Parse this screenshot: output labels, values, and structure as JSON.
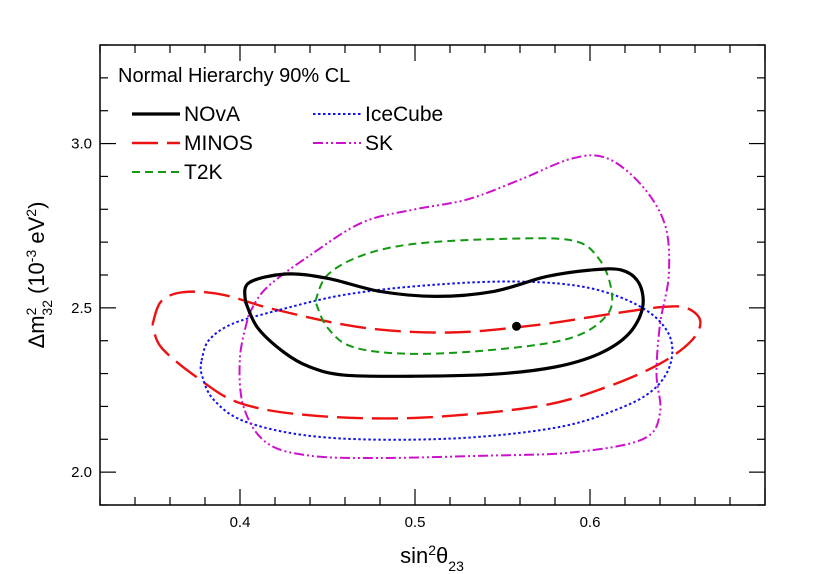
{
  "chart_data": {
    "type": "line",
    "legend_header": "Normal Hierarchy 90% CL",
    "xlabel": {
      "base": "sin",
      "sup": "2",
      "symbol": "θ",
      "sub": "23"
    },
    "ylabel": {
      "prefix": "Δm",
      "sup": "2",
      "sub": "32",
      "units": "(10",
      "units_sup": "-3",
      "units_tail": " eV",
      "units_sup2": "2",
      "units_close": ")"
    },
    "xlim": [
      0.32,
      0.7
    ],
    "ylim": [
      1.9,
      3.3
    ],
    "xticks": [
      0.4,
      0.5,
      0.6
    ],
    "xtick_labels": [
      "0.4",
      "0.5",
      "0.6"
    ],
    "yticks": [
      2.0,
      2.5,
      3.0
    ],
    "ytick_labels": [
      "2.0",
      "2.5",
      "3.0"
    ],
    "grid": false,
    "legend_position": "top-left",
    "best_fit": {
      "series": "NOvA",
      "x": 0.558,
      "y": 2.444
    },
    "series": [
      {
        "name": "NOvA",
        "color": "#000000",
        "dash": "solid",
        "width": 3.2,
        "points": [
          [
            0.403,
            2.52
          ],
          [
            0.405,
            2.576
          ],
          [
            0.426,
            2.603
          ],
          [
            0.45,
            2.59
          ],
          [
            0.48,
            2.55
          ],
          [
            0.512,
            2.535
          ],
          [
            0.545,
            2.55
          ],
          [
            0.575,
            2.595
          ],
          [
            0.6,
            2.615
          ],
          [
            0.618,
            2.615
          ],
          [
            0.628,
            2.575
          ],
          [
            0.63,
            2.5
          ],
          [
            0.622,
            2.42
          ],
          [
            0.605,
            2.36
          ],
          [
            0.58,
            2.32
          ],
          [
            0.545,
            2.298
          ],
          [
            0.5,
            2.292
          ],
          [
            0.46,
            2.295
          ],
          [
            0.44,
            2.32
          ],
          [
            0.425,
            2.365
          ],
          [
            0.41,
            2.44
          ],
          [
            0.403,
            2.52
          ]
        ]
      },
      {
        "name": "MINOS",
        "color": "#ee1111",
        "dash": "long-dash",
        "width": 2.4,
        "points": [
          [
            0.35,
            2.45
          ],
          [
            0.355,
            2.52
          ],
          [
            0.368,
            2.548
          ],
          [
            0.39,
            2.54
          ],
          [
            0.42,
            2.495
          ],
          [
            0.47,
            2.44
          ],
          [
            0.52,
            2.425
          ],
          [
            0.57,
            2.448
          ],
          [
            0.61,
            2.48
          ],
          [
            0.64,
            2.502
          ],
          [
            0.655,
            2.5
          ],
          [
            0.663,
            2.46
          ],
          [
            0.658,
            2.4
          ],
          [
            0.64,
            2.33
          ],
          [
            0.61,
            2.26
          ],
          [
            0.57,
            2.2
          ],
          [
            0.5,
            2.165
          ],
          [
            0.44,
            2.173
          ],
          [
            0.4,
            2.21
          ],
          [
            0.375,
            2.29
          ],
          [
            0.355,
            2.38
          ],
          [
            0.35,
            2.45
          ]
        ]
      },
      {
        "name": "T2K",
        "color": "#119911",
        "dash": "dash",
        "width": 2,
        "points": [
          [
            0.443,
            2.52
          ],
          [
            0.45,
            2.6
          ],
          [
            0.47,
            2.66
          ],
          [
            0.5,
            2.695
          ],
          [
            0.55,
            2.71
          ],
          [
            0.59,
            2.705
          ],
          [
            0.605,
            2.65
          ],
          [
            0.612,
            2.56
          ],
          [
            0.61,
            2.48
          ],
          [
            0.59,
            2.41
          ],
          [
            0.55,
            2.375
          ],
          [
            0.5,
            2.36
          ],
          [
            0.465,
            2.38
          ],
          [
            0.45,
            2.44
          ],
          [
            0.443,
            2.52
          ]
        ]
      },
      {
        "name": "IceCube",
        "color": "#1111ee",
        "dash": "dot",
        "width": 2,
        "points": [
          [
            0.378,
            2.34
          ],
          [
            0.382,
            2.4
          ],
          [
            0.395,
            2.45
          ],
          [
            0.42,
            2.49
          ],
          [
            0.46,
            2.54
          ],
          [
            0.51,
            2.57
          ],
          [
            0.56,
            2.58
          ],
          [
            0.6,
            2.56
          ],
          [
            0.63,
            2.5
          ],
          [
            0.645,
            2.42
          ],
          [
            0.646,
            2.33
          ],
          [
            0.636,
            2.25
          ],
          [
            0.615,
            2.19
          ],
          [
            0.58,
            2.135
          ],
          [
            0.52,
            2.102
          ],
          [
            0.45,
            2.105
          ],
          [
            0.405,
            2.15
          ],
          [
            0.385,
            2.22
          ],
          [
            0.378,
            2.3
          ],
          [
            0.378,
            2.34
          ]
        ]
      },
      {
        "name": "SK",
        "color": "#cc11cc",
        "dash": "dash-dot-dot",
        "width": 2,
        "points": [
          [
            0.405,
            2.48
          ],
          [
            0.415,
            2.56
          ],
          [
            0.44,
            2.66
          ],
          [
            0.47,
            2.76
          ],
          [
            0.5,
            2.8
          ],
          [
            0.53,
            2.83
          ],
          [
            0.56,
            2.89
          ],
          [
            0.59,
            2.955
          ],
          [
            0.61,
            2.955
          ],
          [
            0.63,
            2.87
          ],
          [
            0.643,
            2.75
          ],
          [
            0.645,
            2.6
          ],
          [
            0.64,
            2.45
          ],
          [
            0.638,
            2.3
          ],
          [
            0.64,
            2.18
          ],
          [
            0.63,
            2.1
          ],
          [
            0.59,
            2.06
          ],
          [
            0.54,
            2.05
          ],
          [
            0.48,
            2.043
          ],
          [
            0.44,
            2.05
          ],
          [
            0.415,
            2.09
          ],
          [
            0.402,
            2.2
          ],
          [
            0.4,
            2.35
          ],
          [
            0.405,
            2.48
          ]
        ]
      }
    ]
  }
}
